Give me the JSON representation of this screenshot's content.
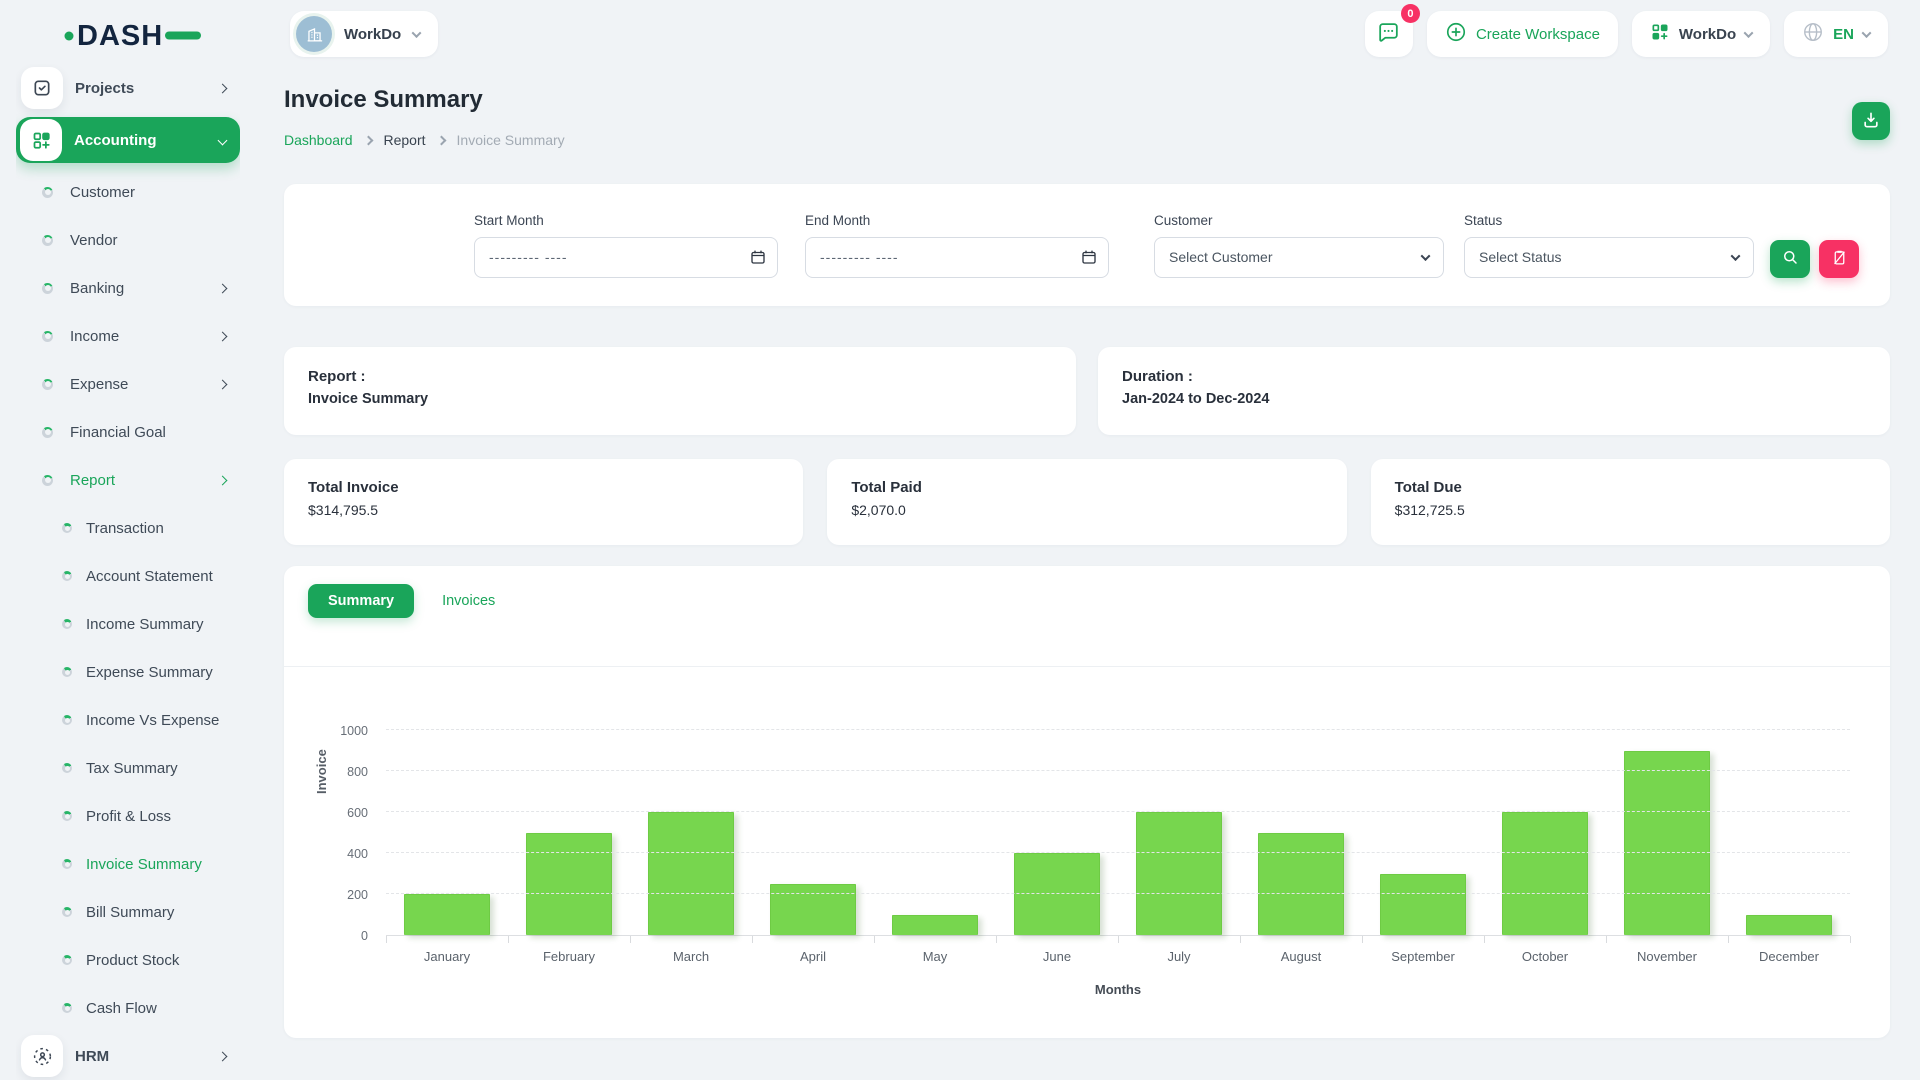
{
  "colors": {
    "primary_green": "#1aa55a",
    "chart_bar_green": "#77d64e",
    "pink": "#f73164",
    "logo_navy": "#13253f",
    "page_background": "#f0f3f6"
  },
  "header": {
    "logo": "DASH",
    "workspace": {
      "name": "WorkDo"
    },
    "messages": {
      "badge": "0"
    },
    "create_workspace_label": "Create Workspace",
    "app_menu_label": "WorkDo",
    "language": "EN"
  },
  "sidebar": [
    {
      "label": "Projects",
      "level": "top",
      "icon": "checkbox-icon",
      "chevron": "right"
    },
    {
      "label": "Accounting",
      "level": "top",
      "icon": "category-icon",
      "chevron": "down",
      "active": true
    },
    {
      "label": "Customer",
      "level": "sub"
    },
    {
      "label": "Vendor",
      "level": "sub"
    },
    {
      "label": "Banking",
      "level": "sub",
      "chevron": "right"
    },
    {
      "label": "Income",
      "level": "sub",
      "chevron": "right"
    },
    {
      "label": "Expense",
      "level": "sub",
      "chevron": "right"
    },
    {
      "label": "Financial Goal",
      "level": "sub"
    },
    {
      "label": "Report",
      "level": "sub",
      "chevron": "right",
      "active": true
    },
    {
      "label": "Transaction",
      "level": "subsub"
    },
    {
      "label": "Account Statement",
      "level": "subsub"
    },
    {
      "label": "Income Summary",
      "level": "subsub"
    },
    {
      "label": "Expense Summary",
      "level": "subsub"
    },
    {
      "label": "Income Vs Expense",
      "level": "subsub"
    },
    {
      "label": "Tax Summary",
      "level": "subsub"
    },
    {
      "label": "Profit & Loss",
      "level": "subsub"
    },
    {
      "label": "Invoice Summary",
      "level": "subsub",
      "active": true
    },
    {
      "label": "Bill Summary",
      "level": "subsub"
    },
    {
      "label": "Product Stock",
      "level": "subsub"
    },
    {
      "label": "Cash Flow",
      "level": "subsub"
    },
    {
      "label": "HRM",
      "level": "top",
      "icon": "hrm-icon",
      "chevron": "right"
    }
  ],
  "page": {
    "title": "Invoice Summary",
    "breadcrumb": [
      {
        "label": "Dashboard",
        "style": "link"
      },
      {
        "label": "Report",
        "style": "mid"
      },
      {
        "label": "Invoice Summary",
        "style": "current"
      }
    ]
  },
  "filters": {
    "start_month_label": "Start Month",
    "end_month_label": "End Month",
    "month_placeholder": "--------- ----",
    "customer_label": "Customer",
    "customer_value": "Select Customer",
    "status_label": "Status",
    "status_value": "Select Status"
  },
  "summary": {
    "report_label": "Report :",
    "report_value": "Invoice Summary",
    "duration_label": "Duration :",
    "duration_value": "Jan-2024 to Dec-2024",
    "totals": [
      {
        "label": "Total Invoice",
        "value": "$314,795.5"
      },
      {
        "label": "Total Paid",
        "value": "$2,070.0"
      },
      {
        "label": "Total Due",
        "value": "$312,725.5"
      }
    ]
  },
  "tabs": [
    {
      "label": "Summary",
      "active": true
    },
    {
      "label": "Invoices",
      "active": false
    }
  ],
  "chart_data": {
    "type": "bar",
    "title": "",
    "categories": [
      "January",
      "February",
      "March",
      "April",
      "May",
      "June",
      "July",
      "August",
      "September",
      "October",
      "November",
      "December"
    ],
    "values": [
      200,
      500,
      600,
      250,
      100,
      400,
      600,
      500,
      300,
      600,
      900,
      100
    ],
    "xlabel": "Months",
    "ylabel": "Invoice",
    "ylim": [
      0,
      1000
    ],
    "yticks": [
      0,
      200,
      400,
      600,
      800,
      1000
    ],
    "grid": true,
    "legend": "none",
    "bar_color": "#77d64e"
  }
}
